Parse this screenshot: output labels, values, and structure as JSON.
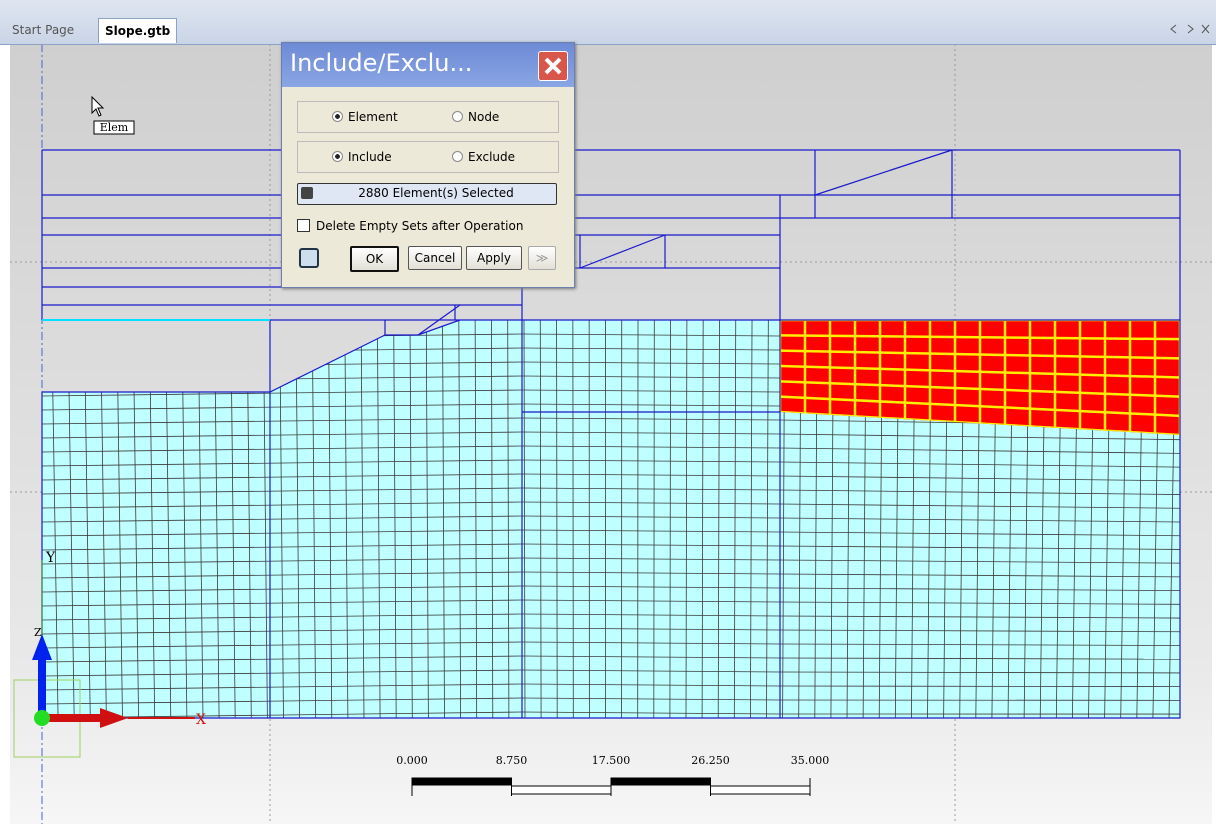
{
  "tabs": [
    "Start Page",
    "Slope.gtb"
  ],
  "dialog": {
    "title": "Include/Exclu...",
    "target_options": [
      "Element",
      "Node"
    ],
    "mode_options": [
      "Include",
      "Exclude"
    ],
    "selection": "2880 Element(s) Selected",
    "checkbox": "Delete Empty Sets after Operation",
    "buttons": [
      "OK",
      "Cancel",
      "Apply",
      "≫"
    ]
  },
  "viewport": {
    "tooltip": "Elem",
    "axes": {
      "x": "X",
      "y": "Y",
      "z": "Z"
    },
    "scale_labels": [
      "0.000",
      "8.750",
      "17.500",
      "26.250",
      "35.000"
    ]
  }
}
